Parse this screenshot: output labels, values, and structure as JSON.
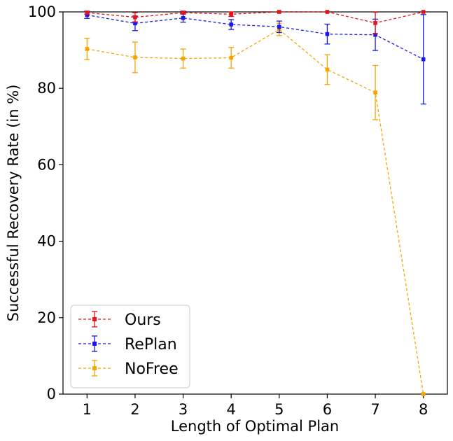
{
  "chart_data": {
    "type": "line",
    "title": "",
    "xlabel": "Length of Optimal Plan",
    "ylabel": "Successful Recovery Rate (in %)",
    "x": [
      1,
      2,
      3,
      4,
      5,
      6,
      7,
      8
    ],
    "xlim": [
      0.5,
      8.5
    ],
    "ylim": [
      0,
      100
    ],
    "xticks": [
      "1",
      "2",
      "3",
      "4",
      "5",
      "6",
      "7",
      "8"
    ],
    "yticks": [
      "0",
      "20",
      "40",
      "60",
      "80",
      "100"
    ],
    "grid": false,
    "legend_position": "lower-left",
    "series": [
      {
        "name": "Ours",
        "color": "#e8101a",
        "values": [
          99.8,
          98.6,
          99.8,
          99.4,
          100.0,
          100.0,
          97.1,
          100.0
        ],
        "errors": [
          0.4,
          1.2,
          0.4,
          0.6,
          0.0,
          0.0,
          2.8,
          0.0
        ]
      },
      {
        "name": "RePlan",
        "color": "#1a1ae6",
        "values": [
          99.2,
          97.0,
          98.4,
          96.7,
          96.1,
          94.2,
          94.0,
          87.6
        ],
        "errors": [
          0.9,
          1.9,
          1.1,
          1.3,
          1.5,
          2.6,
          4.1,
          11.7
        ]
      },
      {
        "name": "NoFree",
        "color": "#f5a500",
        "values": [
          90.3,
          88.1,
          87.8,
          88.0,
          95.4,
          84.9,
          78.9,
          0.0
        ],
        "errors": [
          2.8,
          4.0,
          2.5,
          2.7,
          1.6,
          3.9,
          7.1,
          0.0
        ]
      }
    ]
  }
}
